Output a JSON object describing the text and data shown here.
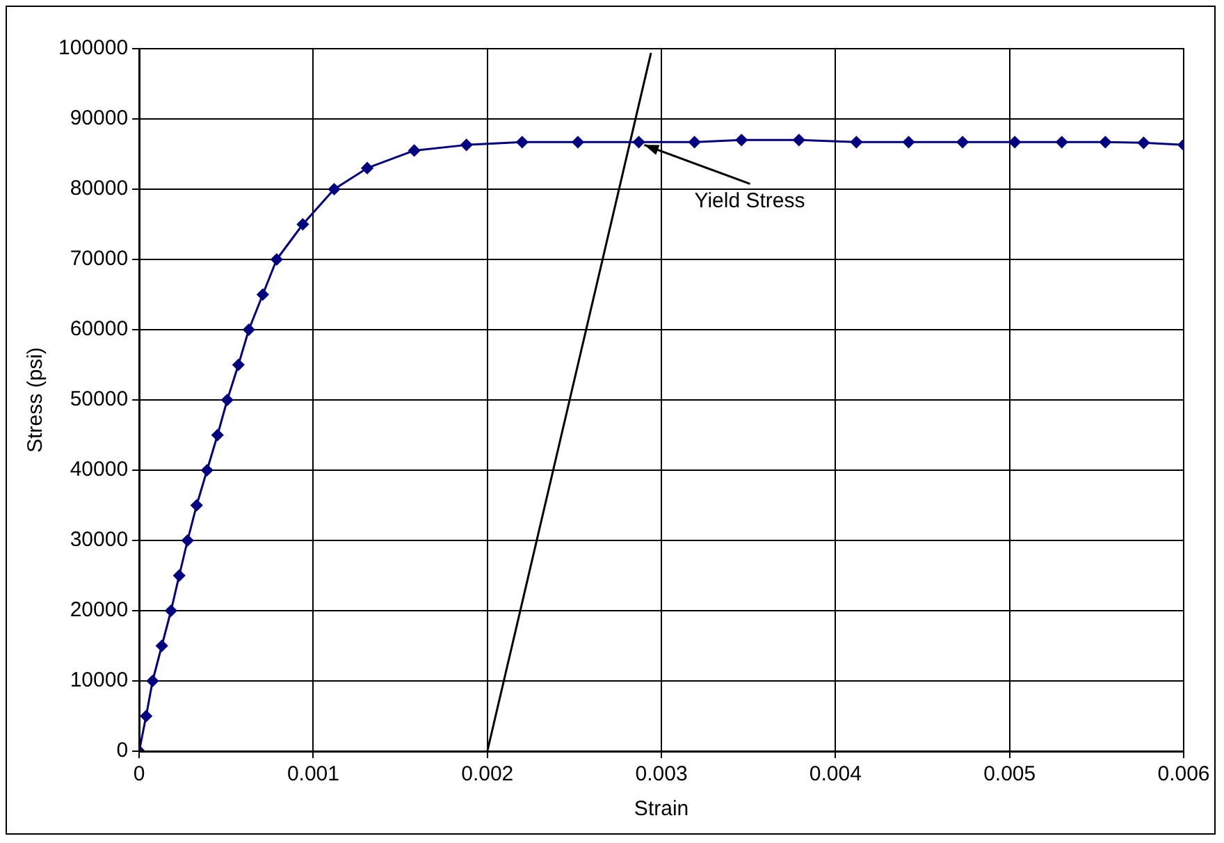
{
  "chart_data": {
    "type": "line",
    "xlabel": "Strain",
    "ylabel": "Stress (psi)",
    "series": [
      {
        "color": "#000080",
        "marker": "diamond",
        "x": [
          0,
          4e-05,
          7.7e-05,
          0.00013,
          0.000183,
          0.00023,
          0.000278,
          0.00033,
          0.00039,
          0.00045,
          0.000506,
          0.00057,
          0.00063,
          0.00071,
          0.00079,
          0.00094,
          0.00112,
          0.00131,
          0.00158,
          0.00188,
          0.0022,
          0.00252,
          0.00287,
          0.00319,
          0.00346,
          0.00379,
          0.00412,
          0.00442,
          0.00473,
          0.00503,
          0.0053,
          0.00555,
          0.00577,
          0.006
        ],
        "values": [
          0,
          5000,
          10000,
          15000,
          20000,
          25000,
          30000,
          35000,
          40000,
          45000,
          50000,
          55000,
          60000,
          65000,
          70000,
          75000,
          80000,
          83000,
          85500,
          86300,
          86700,
          86700,
          86700,
          86700,
          87000,
          87000,
          86700,
          86700,
          86700,
          86700,
          86700,
          86700,
          86600,
          86300
        ]
      },
      {
        "type": "line",
        "color": "#000000",
        "marker": "none",
        "x": [
          0.002,
          0.00294
        ],
        "values": [
          0,
          99400
        ]
      }
    ],
    "xlim": [
      0,
      0.006
    ],
    "xticks": [
      0,
      0.001,
      0.002,
      0.003,
      0.004,
      0.005,
      0.006
    ],
    "ylim": [
      0,
      100000
    ],
    "yticks": [
      0,
      10000,
      20000,
      30000,
      40000,
      50000,
      60000,
      70000,
      80000,
      90000,
      100000
    ],
    "grid": true,
    "legend": false,
    "annotations": [
      {
        "text": "Yield Stress",
        "x": 0.00287,
        "y": 86700
      }
    ]
  }
}
